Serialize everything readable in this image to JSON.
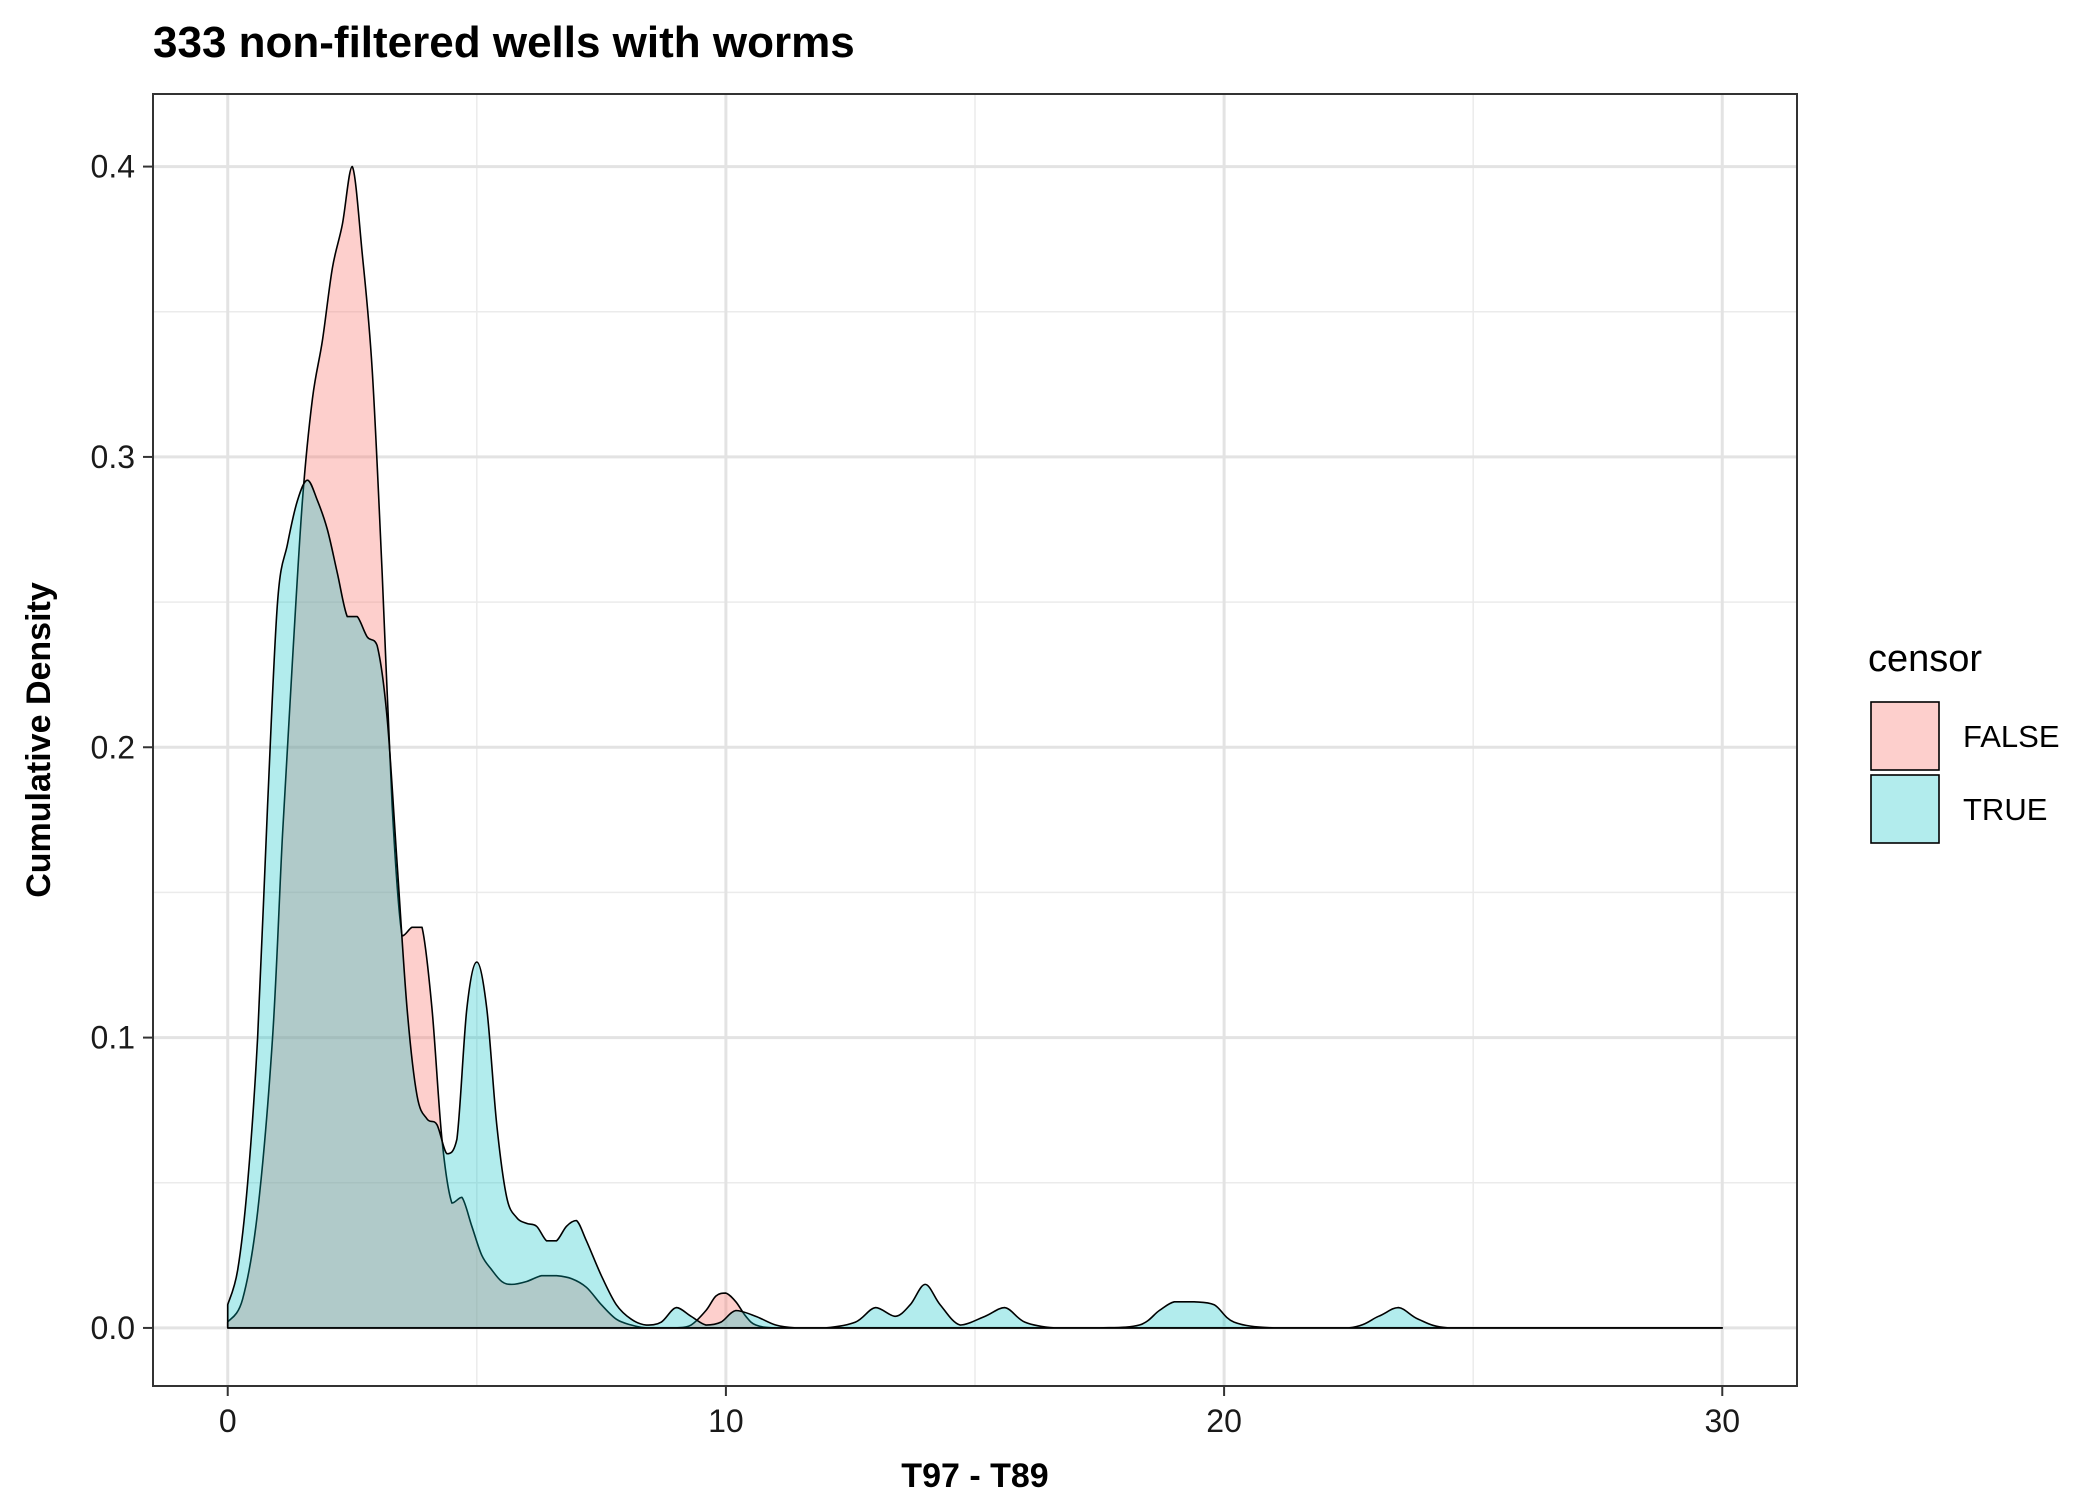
{
  "chart_data": {
    "type": "area",
    "title": "333 non-filtered wells with worms",
    "xlabel": "T97 - T89",
    "ylabel": "Cumulative Density",
    "xlim": [
      -1.5,
      31.5
    ],
    "ylim": [
      -0.02,
      0.425
    ],
    "x_ticks": [
      0,
      10,
      20,
      30
    ],
    "x_tick_labels": [
      "0",
      "10",
      "20",
      "30"
    ],
    "y_ticks": [
      0.0,
      0.1,
      0.2,
      0.3,
      0.4
    ],
    "y_tick_labels": [
      "0.0",
      "0.1",
      "0.2",
      "0.3",
      "0.4"
    ],
    "grid": true,
    "legend": {
      "title": "censor",
      "position": "right"
    },
    "series": [
      {
        "name": "FALSE",
        "color": "#F8766D",
        "fill_opacity": 0.35,
        "x": [
          0,
          0.3,
          0.6,
          0.9,
          1.1,
          1.3,
          1.5,
          1.7,
          1.9,
          2.1,
          2.3,
          2.5,
          2.7,
          2.9,
          3.1,
          3.3,
          3.5,
          3.7,
          3.9,
          4.1,
          4.3,
          4.5,
          4.7,
          4.9,
          5.1,
          5.3,
          5.5,
          5.7,
          6.0,
          6.3,
          6.6,
          6.9,
          7.2,
          7.5,
          7.8,
          8.1,
          8.4,
          8.7,
          9.0,
          9.3,
          9.6,
          9.8,
          10.0,
          10.2,
          10.4,
          10.6,
          11.0,
          12.0,
          15.0,
          20.0,
          25.0,
          30.0
        ],
        "values": [
          0.002,
          0.01,
          0.04,
          0.1,
          0.17,
          0.23,
          0.285,
          0.32,
          0.34,
          0.365,
          0.38,
          0.4,
          0.37,
          0.33,
          0.26,
          0.18,
          0.135,
          0.138,
          0.138,
          0.11,
          0.065,
          0.043,
          0.045,
          0.035,
          0.025,
          0.02,
          0.016,
          0.015,
          0.016,
          0.018,
          0.018,
          0.017,
          0.014,
          0.008,
          0.003,
          0.001,
          0.0,
          0.0,
          0.0,
          0.001,
          0.006,
          0.011,
          0.012,
          0.009,
          0.004,
          0.001,
          0.0,
          0.0,
          0.0,
          0.0,
          0.0,
          0.0
        ]
      },
      {
        "name": "TRUE",
        "color": "#00BFC4",
        "fill_opacity": 0.3,
        "x": [
          0,
          0.2,
          0.4,
          0.6,
          0.8,
          1.0,
          1.2,
          1.4,
          1.6,
          1.8,
          2.0,
          2.2,
          2.4,
          2.6,
          2.8,
          3.0,
          3.2,
          3.4,
          3.6,
          3.8,
          4.0,
          4.2,
          4.4,
          4.6,
          4.8,
          5.0,
          5.2,
          5.4,
          5.6,
          5.8,
          6.0,
          6.2,
          6.4,
          6.6,
          6.8,
          7.0,
          7.2,
          7.5,
          7.8,
          8.1,
          8.4,
          8.7,
          9.0,
          9.3,
          9.6,
          9.9,
          10.2,
          10.6,
          11.0,
          11.4,
          12.0,
          12.6,
          13.0,
          13.4,
          13.7,
          14.0,
          14.3,
          14.7,
          15.2,
          15.6,
          16.0,
          16.6,
          17.5,
          18.3,
          18.7,
          19.0,
          19.4,
          19.8,
          20.2,
          21.0,
          22.5,
          23.1,
          23.5,
          23.9,
          24.5,
          26.0,
          30.0
        ],
        "values": [
          0.008,
          0.02,
          0.05,
          0.1,
          0.18,
          0.25,
          0.27,
          0.285,
          0.292,
          0.285,
          0.275,
          0.26,
          0.245,
          0.245,
          0.238,
          0.235,
          0.21,
          0.16,
          0.11,
          0.08,
          0.072,
          0.07,
          0.06,
          0.065,
          0.11,
          0.126,
          0.11,
          0.07,
          0.045,
          0.038,
          0.036,
          0.035,
          0.03,
          0.03,
          0.035,
          0.037,
          0.03,
          0.018,
          0.008,
          0.003,
          0.001,
          0.002,
          0.007,
          0.004,
          0.001,
          0.002,
          0.006,
          0.004,
          0.001,
          0.0,
          0.0,
          0.002,
          0.007,
          0.004,
          0.008,
          0.015,
          0.008,
          0.001,
          0.004,
          0.007,
          0.002,
          0.0,
          0.0,
          0.001,
          0.006,
          0.009,
          0.009,
          0.008,
          0.002,
          0.0,
          0.0,
          0.004,
          0.007,
          0.003,
          0.0,
          0.0,
          0.0
        ]
      }
    ]
  }
}
